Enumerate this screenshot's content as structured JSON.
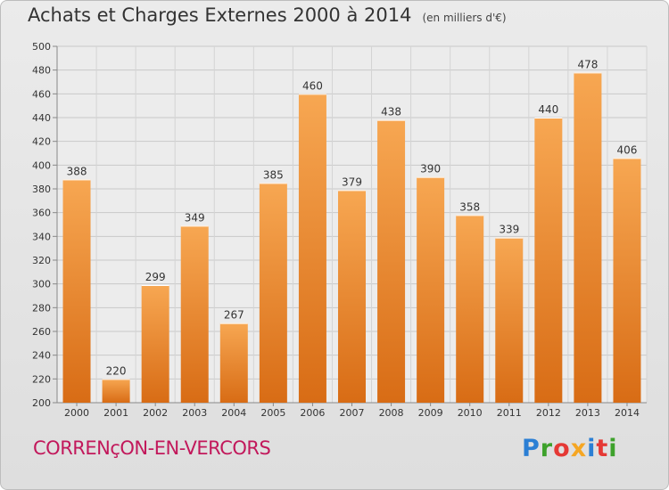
{
  "header": {
    "title": "Achats et Charges Externes 2000 à 2014",
    "unit": "(en milliers d'€)"
  },
  "footer": {
    "commune": "CORRENçON-EN-VERCORS",
    "logo_letters": [
      "P",
      "r",
      "o",
      "x",
      "i",
      "t",
      "i"
    ],
    "logo_colors": [
      "#2b7fd4",
      "#3da12b",
      "#e53935",
      "#f5a623",
      "#2b7fd4",
      "#e53935",
      "#3da12b"
    ]
  },
  "chart_data": {
    "type": "bar",
    "title": "Achats et Charges Externes 2000 à 2014",
    "subtitle": "(en milliers d'€)",
    "categories": [
      "2000",
      "2001",
      "2002",
      "2003",
      "2004",
      "2005",
      "2006",
      "2007",
      "2008",
      "2009",
      "2010",
      "2011",
      "2012",
      "2013",
      "2014"
    ],
    "values": [
      388,
      220,
      299,
      349,
      267,
      385,
      460,
      379,
      438,
      390,
      358,
      339,
      440,
      478,
      406
    ],
    "ylim": [
      200,
      500
    ],
    "yticks": [
      200,
      220,
      240,
      260,
      280,
      300,
      320,
      340,
      360,
      380,
      400,
      420,
      440,
      460,
      480,
      500
    ],
    "grid": true,
    "bar_color_top": "#f7a752",
    "bar_color_bottom": "#d86c15"
  }
}
